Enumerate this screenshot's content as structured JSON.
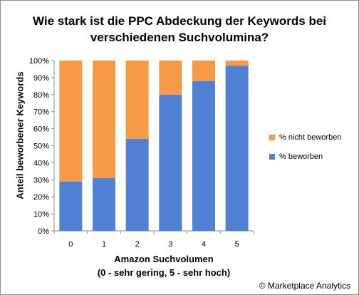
{
  "title_lines": [
    "Wie stark ist die PPC Abdeckung der Keywords bei",
    "verschiedenen Suchvolumina?"
  ],
  "footer": "© Marketplace Analytics",
  "chart_data": {
    "type": "bar",
    "stacked": true,
    "title": "Wie stark ist die PPC Abdeckung der Keywords bei verschiedenen Suchvolumina?",
    "xlabel_lines": [
      "Amazon Suchvolumen",
      "(0 - sehr gering, 5 - sehr hoch)"
    ],
    "ylabel": "Anteil beworbener Keywords",
    "categories": [
      "0",
      "1",
      "2",
      "3",
      "4",
      "5"
    ],
    "y_ticks": [
      "0%",
      "10%",
      "20%",
      "30%",
      "40%",
      "50%",
      "60%",
      "70%",
      "80%",
      "90%",
      "100%"
    ],
    "ylim": [
      0,
      100
    ],
    "grid": false,
    "legend_position": "right",
    "series": [
      {
        "name": "% beworben",
        "color": "#4f81d5",
        "values": [
          29,
          31,
          54,
          80,
          88,
          97
        ]
      },
      {
        "name": "% nicht beworben",
        "color": "#f79a46",
        "values": [
          71,
          69,
          46,
          20,
          12,
          3
        ]
      }
    ]
  }
}
